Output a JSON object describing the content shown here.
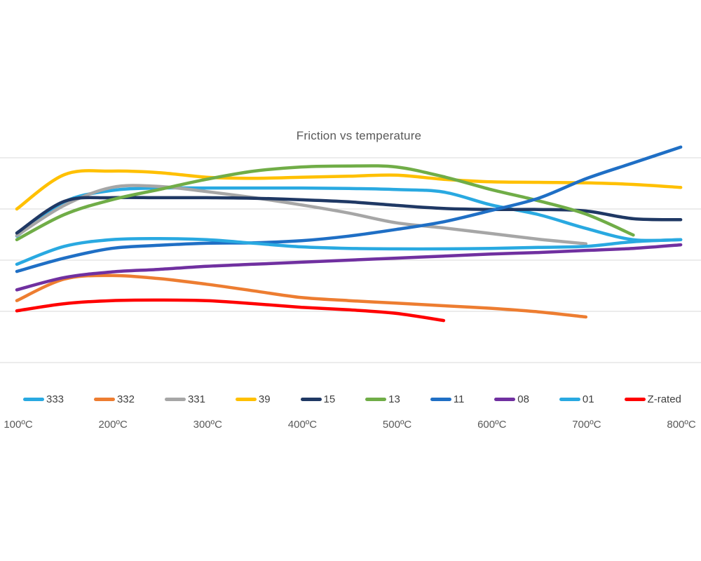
{
  "chart_data": {
    "type": "line",
    "title": "Friction vs temperature",
    "xlabel": "",
    "ylabel": "",
    "x_unit": "ºC",
    "categories": [
      "100ºC",
      "200ºC",
      "300ºC",
      "400ºC",
      "500ºC",
      "600ºC",
      "700ºC",
      "800ºC"
    ],
    "category_values": [
      100,
      200,
      300,
      400,
      500,
      600,
      700,
      800
    ],
    "axes": {
      "y_axis_labels_visible": false,
      "y_values_estimated": true,
      "y_gridline_values": [
        0.2,
        0.3,
        0.4,
        0.5,
        0.6
      ],
      "ylim": [
        0.16,
        0.64
      ],
      "xlim": [
        100,
        800
      ],
      "grid": "horizontal-only"
    },
    "legend_position": "bottom",
    "series": [
      {
        "name": "333",
        "color": "#29A9E1",
        "temps": [
          100,
          150,
          200,
          250,
          300,
          350,
          400,
          450,
          500,
          550,
          600,
          650,
          700,
          750,
          800
        ],
        "values": [
          0.447,
          0.514,
          0.536,
          0.541,
          0.541,
          0.541,
          0.541,
          0.54,
          0.538,
          0.533,
          0.508,
          0.489,
          0.462,
          0.44,
          0.44
        ]
      },
      {
        "name": "332",
        "color": "#ED7D31",
        "temps": [
          100,
          150,
          200,
          250,
          300,
          350,
          400,
          450,
          500,
          550,
          600,
          650,
          700
        ],
        "values": [
          0.321,
          0.363,
          0.37,
          0.364,
          0.353,
          0.34,
          0.327,
          0.321,
          0.316,
          0.311,
          0.306,
          0.299,
          0.289
        ]
      },
      {
        "name": "331",
        "color": "#A6A6A6",
        "temps": [
          100,
          150,
          200,
          250,
          300,
          350,
          400,
          450,
          500,
          550,
          600,
          650,
          700
        ],
        "values": [
          0.448,
          0.507,
          0.542,
          0.544,
          0.534,
          0.522,
          0.508,
          0.492,
          0.473,
          0.463,
          0.452,
          0.441,
          0.432
        ]
      },
      {
        "name": "39",
        "color": "#FFC000",
        "temps": [
          100,
          150,
          200,
          250,
          300,
          350,
          400,
          450,
          500,
          550,
          600,
          650,
          700,
          750,
          800
        ],
        "values": [
          0.5,
          0.567,
          0.574,
          0.571,
          0.562,
          0.56,
          0.562,
          0.564,
          0.566,
          0.558,
          0.553,
          0.552,
          0.551,
          0.548,
          0.542
        ]
      },
      {
        "name": "15",
        "color": "#1F3864",
        "temps": [
          100,
          150,
          200,
          250,
          300,
          350,
          400,
          450,
          500,
          550,
          600,
          650,
          700,
          750,
          800
        ],
        "values": [
          0.453,
          0.515,
          0.522,
          0.522,
          0.522,
          0.521,
          0.518,
          0.514,
          0.507,
          0.501,
          0.499,
          0.499,
          0.496,
          0.481,
          0.479
        ]
      },
      {
        "name": "13",
        "color": "#70AD47",
        "temps": [
          100,
          150,
          200,
          250,
          300,
          350,
          400,
          450,
          500,
          550,
          600,
          650,
          700,
          750
        ],
        "values": [
          0.44,
          0.489,
          0.518,
          0.538,
          0.558,
          0.574,
          0.582,
          0.584,
          0.582,
          0.563,
          0.538,
          0.516,
          0.49,
          0.449
        ]
      },
      {
        "name": "11",
        "color": "#1F6FC5",
        "temps": [
          100,
          150,
          200,
          250,
          300,
          350,
          400,
          450,
          500,
          550,
          600,
          650,
          700,
          750,
          800
        ],
        "values": [
          0.378,
          0.404,
          0.423,
          0.429,
          0.433,
          0.434,
          0.438,
          0.447,
          0.46,
          0.475,
          0.497,
          0.521,
          0.559,
          0.59,
          0.621
        ]
      },
      {
        "name": "08",
        "color": "#7030A0",
        "temps": [
          100,
          150,
          200,
          250,
          300,
          350,
          400,
          450,
          500,
          550,
          600,
          650,
          700,
          750,
          800
        ],
        "values": [
          0.342,
          0.366,
          0.377,
          0.382,
          0.388,
          0.392,
          0.396,
          0.4,
          0.404,
          0.408,
          0.412,
          0.415,
          0.419,
          0.423,
          0.43
        ]
      },
      {
        "name": "01",
        "color": "#29A9E1",
        "temps": [
          100,
          150,
          200,
          250,
          300,
          350,
          400,
          450,
          500,
          550,
          600,
          650,
          700,
          750,
          800
        ],
        "values": [
          0.392,
          0.427,
          0.44,
          0.442,
          0.44,
          0.433,
          0.426,
          0.423,
          0.422,
          0.422,
          0.423,
          0.425,
          0.427,
          0.436,
          0.44
        ]
      },
      {
        "name": "Z-rated",
        "color": "#FF0000",
        "temps": [
          100,
          150,
          200,
          250,
          300,
          350,
          400,
          450,
          500,
          550
        ],
        "values": [
          0.301,
          0.315,
          0.321,
          0.322,
          0.321,
          0.315,
          0.308,
          0.303,
          0.296,
          0.282
        ]
      }
    ],
    "gridline_color": "#D9D9D9"
  }
}
